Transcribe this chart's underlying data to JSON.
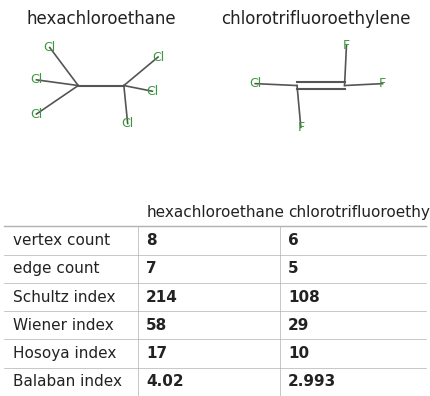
{
  "col1": "hexachloroethane",
  "col2": "chlorotrifluoroethylene",
  "rows": [
    [
      "vertex count",
      "8",
      "6"
    ],
    [
      "edge count",
      "7",
      "5"
    ],
    [
      "Schultz index",
      "214",
      "108"
    ],
    [
      "Wiener index",
      "58",
      "29"
    ],
    [
      "Hosoya index",
      "17",
      "10"
    ],
    [
      "Balaban index",
      "4.02",
      "2.993"
    ]
  ],
  "mol_color": "#3a9a3a",
  "line_color": "#808080",
  "border_color": "#b0b0b0",
  "bg_color": "#ffffff",
  "header_bg": "#ffffff",
  "text_color": "#222222",
  "font_size": 11,
  "title_font_size": 12
}
